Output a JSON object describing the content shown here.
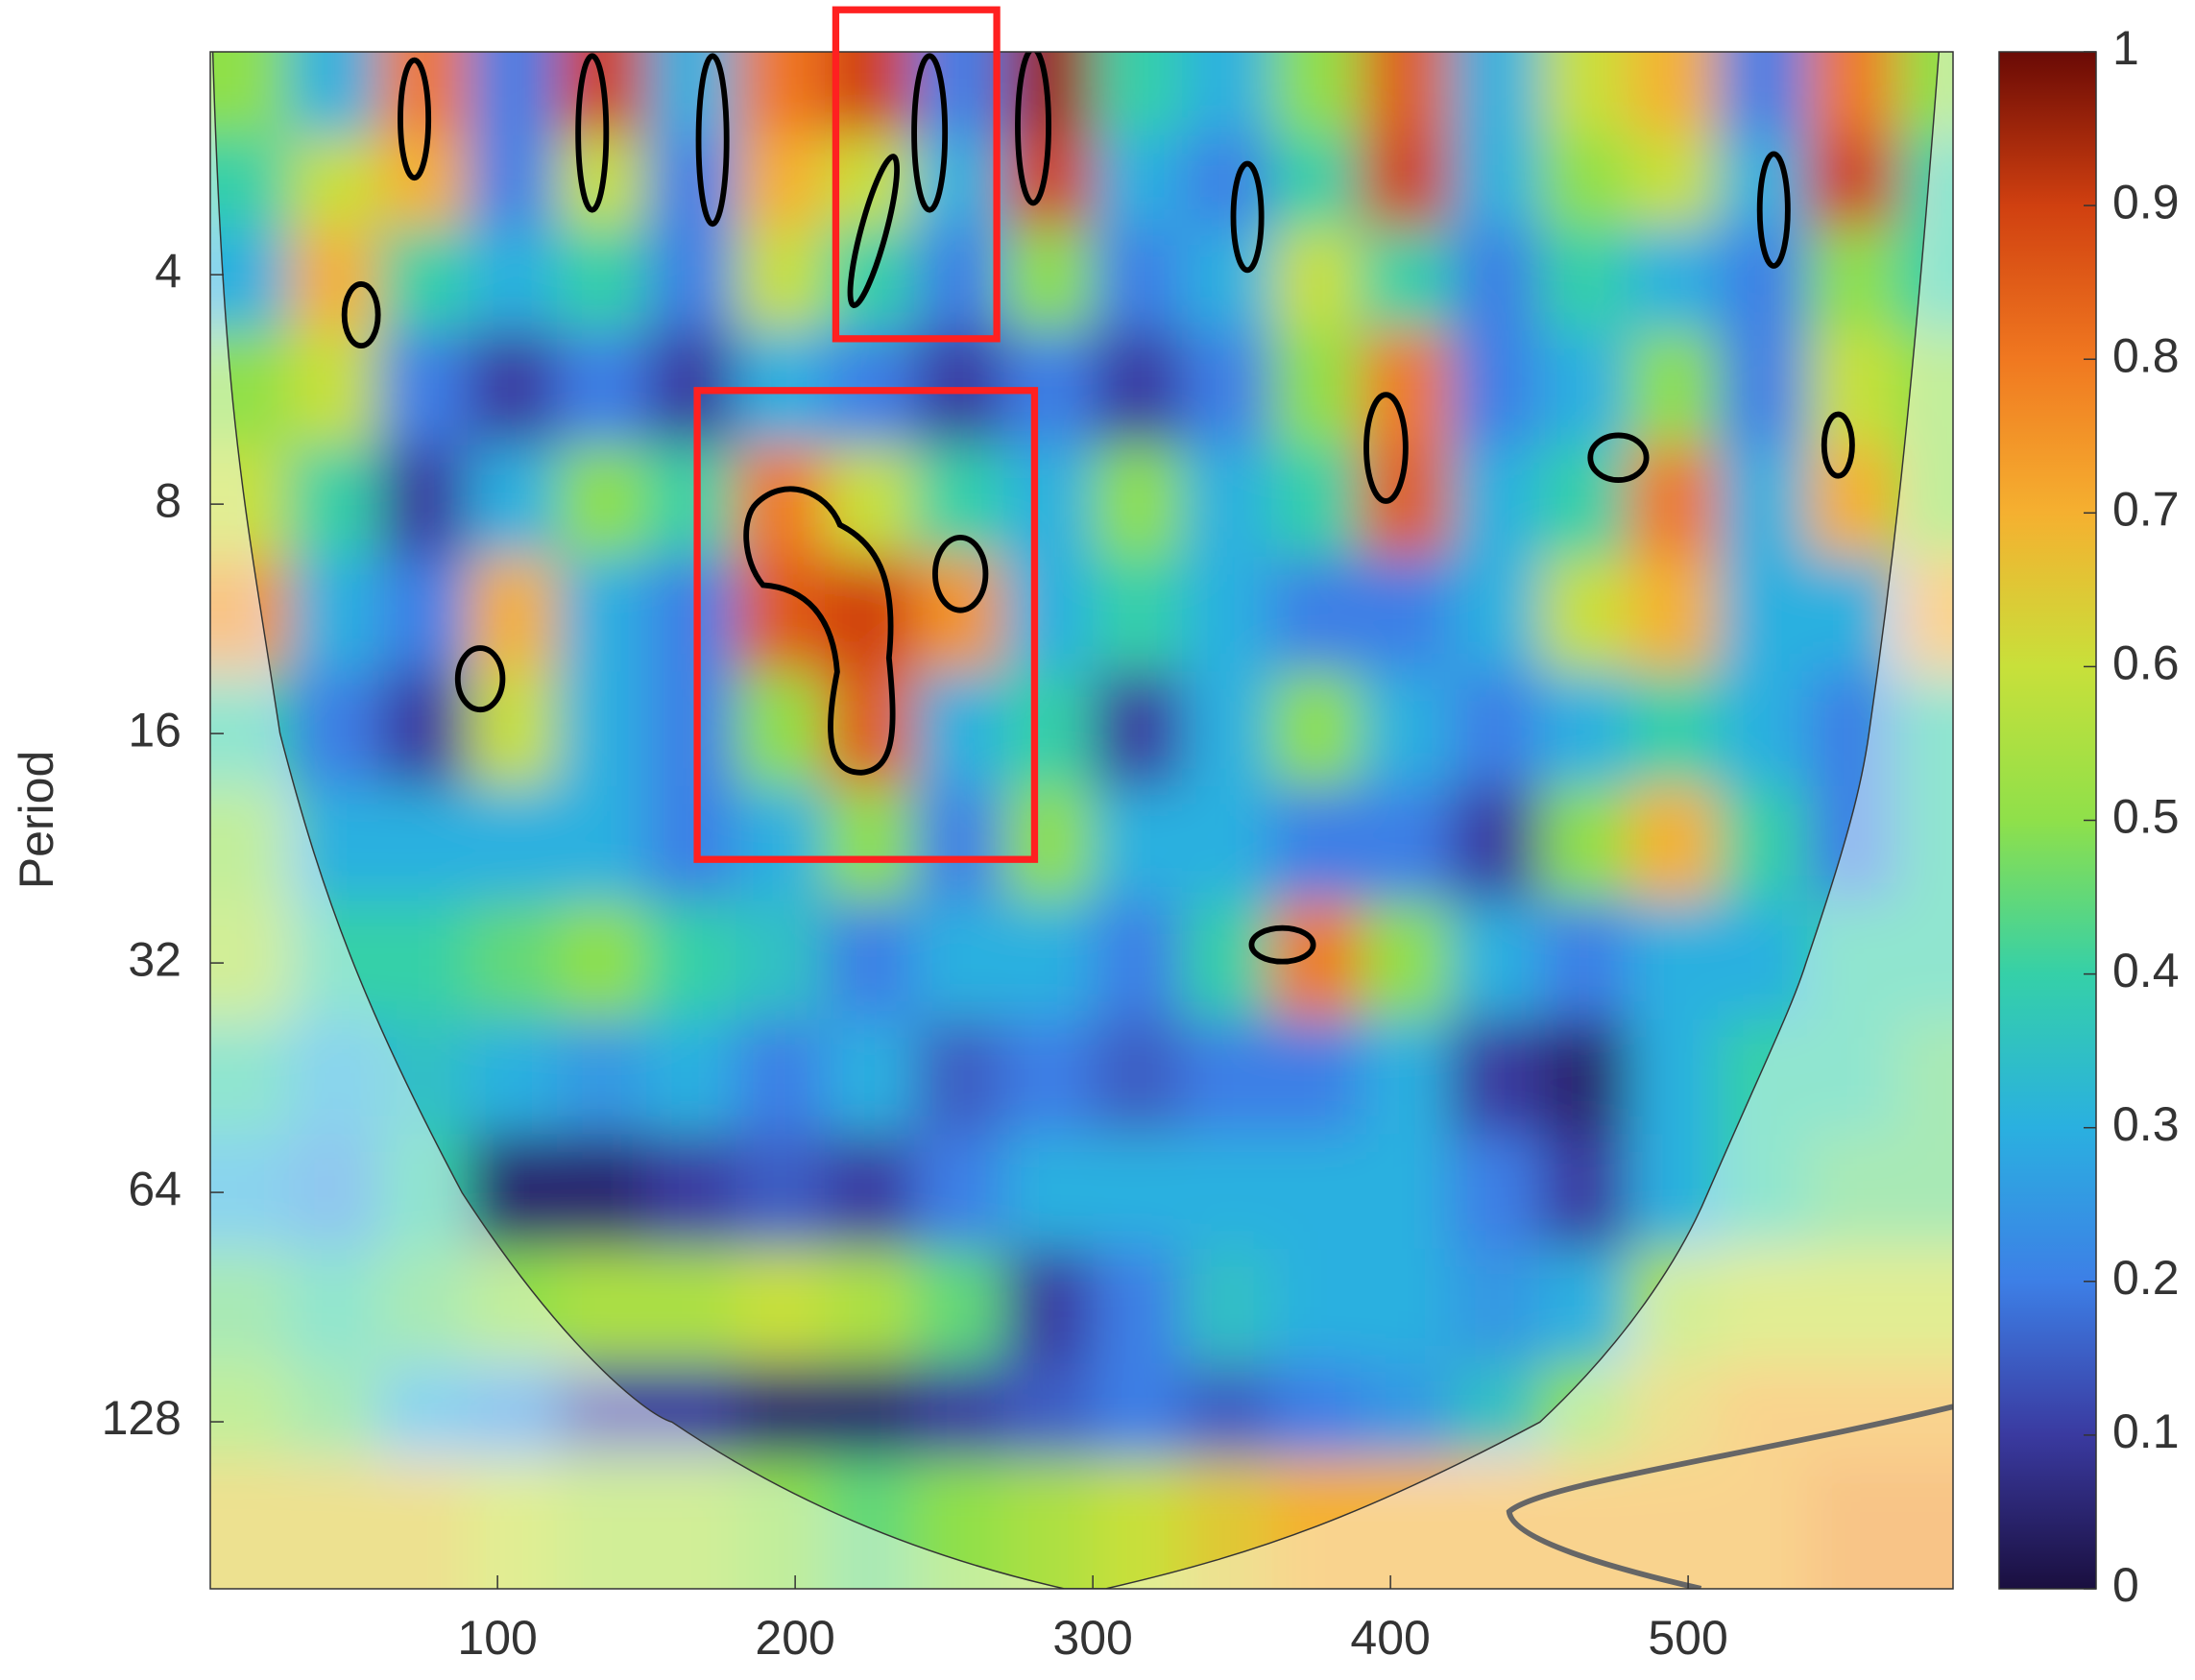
{
  "chart_data": {
    "type": "heatmap",
    "ylabel": "Period",
    "yscale": "log",
    "xlim": [
      3.5,
      589
    ],
    "xticks": [
      100,
      200,
      300,
      400,
      500
    ],
    "ylim": [
      2.04,
      212
    ],
    "yticks": [
      4,
      8,
      16,
      32,
      64,
      128
    ],
    "clim": [
      0,
      1
    ],
    "cticks": [
      0,
      0.1,
      0.2,
      0.3,
      0.4,
      0.5,
      0.6,
      0.7,
      0.8,
      0.9,
      1
    ],
    "colormap": [
      "#1a0f3f",
      "#3a3aa0",
      "#3d7fe6",
      "#2ab0e0",
      "#35d0a8",
      "#8fe04a",
      "#c8e03a",
      "#f5b030",
      "#f07820",
      "#d04010",
      "#6a0a05"
    ],
    "x": [
      15,
      45,
      75,
      105,
      135,
      165,
      195,
      225,
      255,
      285,
      315,
      345,
      375,
      405,
      435,
      465,
      495,
      525,
      555,
      585
    ],
    "y": [
      2.3,
      3,
      4,
      5.6,
      8,
      11,
      16,
      22,
      32,
      45,
      64,
      90,
      128,
      160
    ],
    "z": [
      [
        0.5,
        0.3,
        0.8,
        0.2,
        0.9,
        0.3,
        0.8,
        0.9,
        0.2,
        0.95,
        0.4,
        0.3,
        0.5,
        0.85,
        0.3,
        0.6,
        0.7,
        0.2,
        0.8,
        0.5
      ],
      [
        0.4,
        0.6,
        0.7,
        0.2,
        0.6,
        0.2,
        0.7,
        0.6,
        0.3,
        0.9,
        0.3,
        0.2,
        0.4,
        0.9,
        0.3,
        0.5,
        0.6,
        0.3,
        0.9,
        0.4
      ],
      [
        0.3,
        0.7,
        0.4,
        0.3,
        0.4,
        0.2,
        0.6,
        0.4,
        0.2,
        0.5,
        0.2,
        0.3,
        0.6,
        0.4,
        0.2,
        0.4,
        0.3,
        0.2,
        0.5,
        0.4
      ],
      [
        0.5,
        0.6,
        0.2,
        0.1,
        0.2,
        0.1,
        0.3,
        0.2,
        0.1,
        0.2,
        0.1,
        0.2,
        0.5,
        0.8,
        0.2,
        0.3,
        0.5,
        0.2,
        0.6,
        0.5
      ],
      [
        0.6,
        0.4,
        0.1,
        0.3,
        0.5,
        0.4,
        0.8,
        0.6,
        0.4,
        0.3,
        0.5,
        0.3,
        0.4,
        0.85,
        0.3,
        0.4,
        0.8,
        0.3,
        0.7,
        0.5
      ],
      [
        0.75,
        0.3,
        0.2,
        0.7,
        0.3,
        0.2,
        0.85,
        0.9,
        0.75,
        0.3,
        0.4,
        0.3,
        0.2,
        0.2,
        0.3,
        0.6,
        0.7,
        0.3,
        0.3,
        0.7
      ],
      [
        0.4,
        0.2,
        0.1,
        0.6,
        0.3,
        0.2,
        0.5,
        0.85,
        0.3,
        0.4,
        0.1,
        0.3,
        0.5,
        0.3,
        0.2,
        0.3,
        0.4,
        0.3,
        0.2,
        0.4
      ],
      [
        0.5,
        0.3,
        0.3,
        0.3,
        0.3,
        0.2,
        0.3,
        0.5,
        0.2,
        0.5,
        0.3,
        0.3,
        0.2,
        0.2,
        0.1,
        0.5,
        0.7,
        0.4,
        0.2,
        0.4
      ],
      [
        0.55,
        0.4,
        0.4,
        0.45,
        0.5,
        0.4,
        0.35,
        0.2,
        0.3,
        0.3,
        0.2,
        0.4,
        0.8,
        0.5,
        0.3,
        0.2,
        0.3,
        0.3,
        0.4,
        0.4
      ],
      [
        0.4,
        0.3,
        0.35,
        0.3,
        0.25,
        0.3,
        0.2,
        0.3,
        0.15,
        0.2,
        0.15,
        0.2,
        0.2,
        0.3,
        0.1,
        0.05,
        0.3,
        0.4,
        0.4,
        0.45
      ],
      [
        0.3,
        0.25,
        0.4,
        0.05,
        0.05,
        0.1,
        0.15,
        0.1,
        0.2,
        0.3,
        0.3,
        0.3,
        0.3,
        0.3,
        0.2,
        0.1,
        0.3,
        0.4,
        0.45,
        0.45
      ],
      [
        0.45,
        0.4,
        0.45,
        0.5,
        0.55,
        0.55,
        0.6,
        0.55,
        0.45,
        0.1,
        0.2,
        0.35,
        0.3,
        0.3,
        0.25,
        0.3,
        0.55,
        0.6,
        0.6,
        0.6
      ],
      [
        0.5,
        0.45,
        0.3,
        0.25,
        0.1,
        0.1,
        0.05,
        0.05,
        0.1,
        0.15,
        0.2,
        0.15,
        0.2,
        0.25,
        0.35,
        0.5,
        0.65,
        0.7,
        0.7,
        0.7
      ],
      [
        0.65,
        0.65,
        0.65,
        0.6,
        0.55,
        0.55,
        0.5,
        0.45,
        0.5,
        0.55,
        0.6,
        0.65,
        0.7,
        0.7,
        0.7,
        0.7,
        0.7,
        0.7,
        0.75,
        0.75
      ]
    ]
  }
}
